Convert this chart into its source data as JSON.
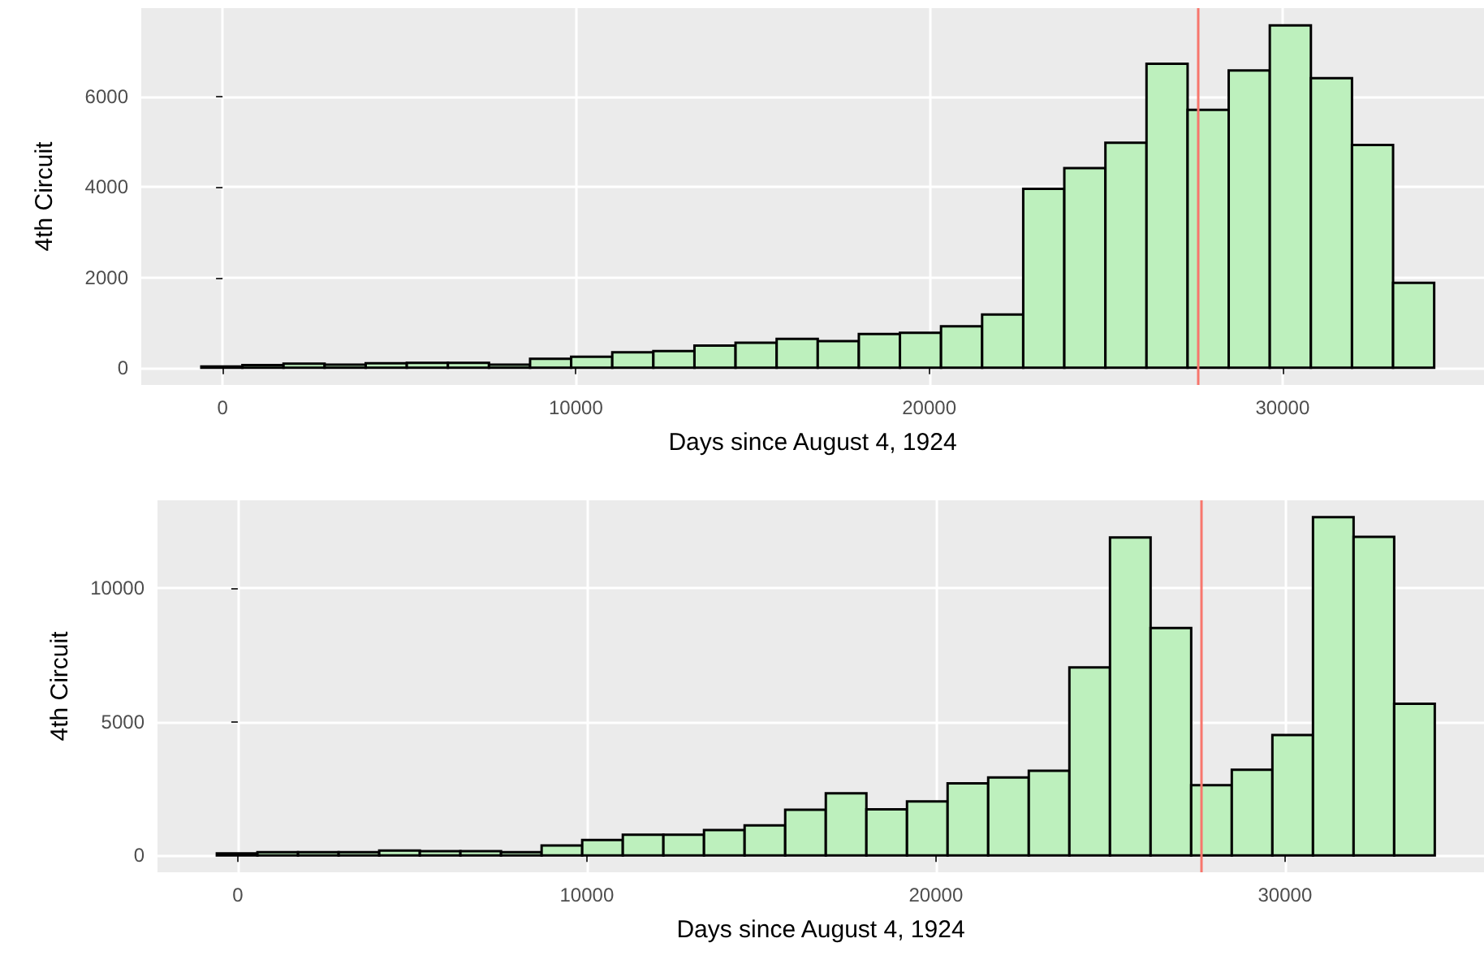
{
  "chart_data": [
    {
      "type": "histogram",
      "xlabel": "Days since August 4, 1924",
      "ylabel": "4th Circuit",
      "color": "#bdf0bd",
      "bins": [
        -600,
        563,
        1726,
        2889,
        4052,
        5215,
        6378,
        7541,
        8704,
        9867,
        11030,
        12193,
        13356,
        14519,
        15682,
        16845,
        18008,
        19171,
        20334,
        21497,
        22660,
        23823,
        24986,
        26149,
        27312,
        28475,
        29638,
        30801,
        31964,
        33127,
        34290
      ],
      "values": [
        30,
        60,
        90,
        70,
        100,
        110,
        110,
        70,
        200,
        245,
        345,
        370,
        490,
        555,
        640,
        590,
        750,
        775,
        920,
        1180,
        3960,
        4420,
        4980,
        6730,
        5710,
        6580,
        7580,
        6410,
        4930,
        1880
      ],
      "xlim": [
        -2300,
        35700
      ],
      "xticks": [
        0,
        10000,
        20000,
        30000
      ],
      "ylim": [
        -380,
        7960
      ],
      "yticks": [
        0,
        2000,
        4000,
        6000
      ],
      "grid": true,
      "ref_lines": [
        {
          "axis": "x",
          "value": 27600,
          "color": "#f8766d"
        }
      ]
    },
    {
      "type": "histogram",
      "xlabel": "Days since August 4, 1924",
      "ylabel": "4th Circuit",
      "color": "#bdf0bd",
      "bins": [
        -600,
        563,
        1726,
        2889,
        4052,
        5215,
        6378,
        7541,
        8704,
        9867,
        11030,
        12193,
        13356,
        14519,
        15682,
        16845,
        18008,
        19171,
        20334,
        21497,
        22660,
        23823,
        24986,
        26149,
        27312,
        28475,
        29638,
        30801,
        31964,
        33127,
        34290
      ],
      "values": [
        80,
        120,
        120,
        120,
        185,
        160,
        160,
        120,
        370,
        580,
        780,
        780,
        950,
        1130,
        1710,
        2330,
        1730,
        2020,
        2700,
        2920,
        3170,
        7040,
        11910,
        8520,
        2630,
        3210,
        4510,
        12670,
        11930,
        5680
      ],
      "xlim": [
        -2300,
        35700
      ],
      "xticks": [
        0,
        10000,
        20000,
        30000
      ],
      "ylim": [
        -630,
        13300
      ],
      "yticks": [
        0,
        5000,
        10000
      ],
      "grid": true,
      "ref_lines": [
        {
          "axis": "x",
          "value": 27600,
          "color": "#f8766d"
        }
      ]
    }
  ]
}
